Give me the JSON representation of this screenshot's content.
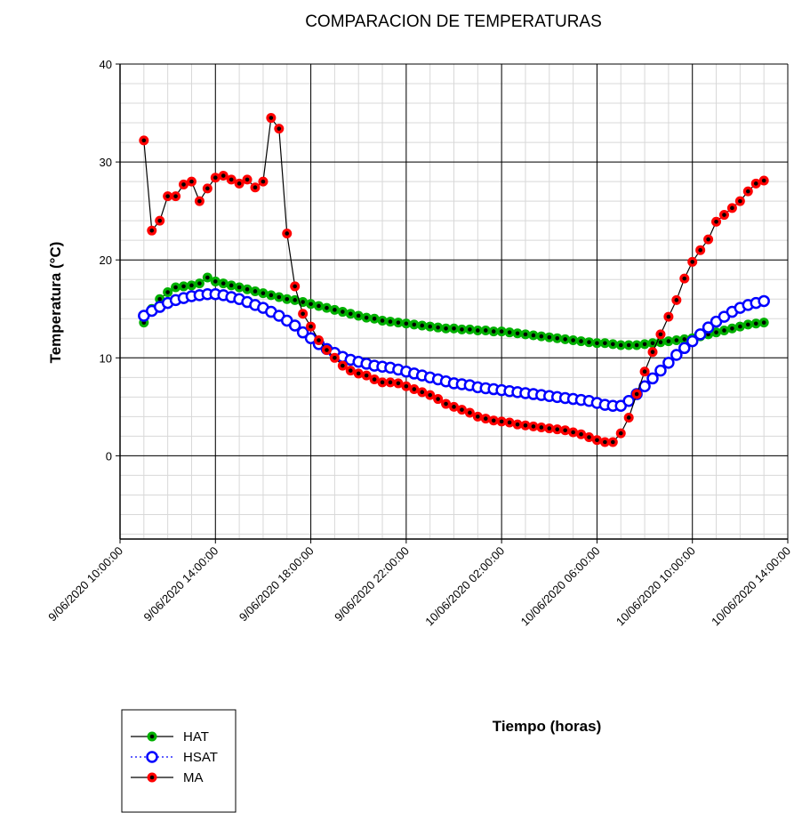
{
  "chart_data": {
    "type": "line",
    "title": "COMPARACION DE TEMPERATURAS",
    "x_label": "Tiempo (horas)",
    "y_label": "Temperatura (°C)",
    "xlim": [
      "9/06/2020 10:00:00",
      "10/06/2020 14:00:00"
    ],
    "xticks": [
      "9/06/2020 10:00:00",
      "9/06/2020 14:00:00",
      "9/06/2020 18:00:00",
      "9/06/2020 22:00:00",
      "10/06/2020 02:00:00",
      "10/06/2020 06:00:00",
      "10/06/2020 10:00:00",
      "10/06/2020 14:00:00"
    ],
    "ylim": [
      -8.5,
      40
    ],
    "yticks": [
      0,
      10,
      20,
      30,
      40
    ],
    "grid": true,
    "legend": "bottom-left",
    "x": [
      "9/06/2020 11:00:00",
      "9/06/2020 11:20:00",
      "9/06/2020 11:40:00",
      "9/06/2020 12:00:00",
      "9/06/2020 12:20:00",
      "9/06/2020 12:40:00",
      "9/06/2020 13:00:00",
      "9/06/2020 13:20:00",
      "9/06/2020 13:40:00",
      "9/06/2020 14:00:00",
      "9/06/2020 14:20:00",
      "9/06/2020 14:40:00",
      "9/06/2020 15:00:00",
      "9/06/2020 15:20:00",
      "9/06/2020 15:40:00",
      "9/06/2020 16:00:00",
      "9/06/2020 16:20:00",
      "9/06/2020 16:40:00",
      "9/06/2020 17:00:00",
      "9/06/2020 17:20:00",
      "9/06/2020 17:40:00",
      "9/06/2020 18:00:00",
      "9/06/2020 18:20:00",
      "9/06/2020 18:40:00",
      "9/06/2020 19:00:00",
      "9/06/2020 19:20:00",
      "9/06/2020 19:40:00",
      "9/06/2020 20:00:00",
      "9/06/2020 20:20:00",
      "9/06/2020 20:40:00",
      "9/06/2020 21:00:00",
      "9/06/2020 21:20:00",
      "9/06/2020 21:40:00",
      "9/06/2020 22:00:00",
      "9/06/2020 22:20:00",
      "9/06/2020 22:40:00",
      "9/06/2020 23:00:00",
      "9/06/2020 23:20:00",
      "9/06/2020 23:40:00",
      "10/06/2020 00:00:00",
      "10/06/2020 00:20:00",
      "10/06/2020 00:40:00",
      "10/06/2020 01:00:00",
      "10/06/2020 01:20:00",
      "10/06/2020 01:40:00",
      "10/06/2020 02:00:00",
      "10/06/2020 02:20:00",
      "10/06/2020 02:40:00",
      "10/06/2020 03:00:00",
      "10/06/2020 03:20:00",
      "10/06/2020 03:40:00",
      "10/06/2020 04:00:00",
      "10/06/2020 04:20:00",
      "10/06/2020 04:40:00",
      "10/06/2020 05:00:00",
      "10/06/2020 05:20:00",
      "10/06/2020 05:40:00",
      "10/06/2020 06:00:00",
      "10/06/2020 06:20:00",
      "10/06/2020 06:40:00",
      "10/06/2020 07:00:00",
      "10/06/2020 07:20:00",
      "10/06/2020 07:40:00",
      "10/06/2020 08:00:00",
      "10/06/2020 08:20:00",
      "10/06/2020 08:40:00",
      "10/06/2020 09:00:00",
      "10/06/2020 09:20:00",
      "10/06/2020 09:40:00",
      "10/06/2020 10:00:00",
      "10/06/2020 10:20:00",
      "10/06/2020 10:40:00",
      "10/06/2020 11:00:00",
      "10/06/2020 11:20:00",
      "10/06/2020 11:40:00",
      "10/06/2020 12:00:00",
      "10/06/2020 12:20:00",
      "10/06/2020 12:40:00",
      "10/06/2020 13:00:00"
    ],
    "series": [
      {
        "name": "HAT",
        "color": "#00b000",
        "line_color": "#000000",
        "line_style": "solid",
        "values": [
          13.6,
          15,
          16,
          16.7,
          17.2,
          17.3,
          17.4,
          17.6,
          18.2,
          17.8,
          17.6,
          17.4,
          17.2,
          17,
          16.8,
          16.6,
          16.4,
          16.2,
          16,
          15.9,
          15.7,
          15.5,
          15.3,
          15.1,
          14.9,
          14.7,
          14.5,
          14.3,
          14.1,
          14,
          13.8,
          13.7,
          13.6,
          13.5,
          13.4,
          13.3,
          13.2,
          13.1,
          13,
          13,
          12.9,
          12.9,
          12.8,
          12.8,
          12.7,
          12.7,
          12.6,
          12.5,
          12.4,
          12.3,
          12.2,
          12.1,
          12,
          11.9,
          11.8,
          11.7,
          11.6,
          11.5,
          11.5,
          11.4,
          11.3,
          11.3,
          11.3,
          11.4,
          11.5,
          11.6,
          11.7,
          11.8,
          11.9,
          12,
          12.2,
          12.4,
          12.6,
          12.8,
          13,
          13.2,
          13.4,
          13.5,
          13.6
        ]
      },
      {
        "name": "HSAT",
        "color": "#0000ff",
        "line_color": "#0000ff",
        "line_style": "dotted",
        "values": [
          14.3,
          14.8,
          15.2,
          15.6,
          15.9,
          16.1,
          16.3,
          16.4,
          16.5,
          16.5,
          16.4,
          16.2,
          16,
          15.7,
          15.4,
          15.1,
          14.7,
          14.3,
          13.8,
          13.3,
          12.6,
          12,
          11.4,
          10.9,
          10.5,
          10.1,
          9.8,
          9.6,
          9.4,
          9.2,
          9.1,
          9,
          8.8,
          8.6,
          8.4,
          8.2,
          8,
          7.8,
          7.6,
          7.4,
          7.3,
          7.2,
          7,
          6.9,
          6.8,
          6.7,
          6.6,
          6.5,
          6.4,
          6.3,
          6.2,
          6.1,
          6,
          5.9,
          5.8,
          5.7,
          5.6,
          5.4,
          5.2,
          5.1,
          5.1,
          5.6,
          6.3,
          7.1,
          7.9,
          8.7,
          9.5,
          10.3,
          11,
          11.7,
          12.4,
          13.1,
          13.7,
          14.2,
          14.7,
          15.1,
          15.4,
          15.6,
          15.8
        ]
      },
      {
        "name": "MA",
        "color": "#ff0000",
        "line_color": "#000000",
        "line_style": "solid",
        "values": [
          32.2,
          23,
          24,
          26.5,
          26.5,
          27.7,
          28,
          26,
          27.3,
          28.4,
          28.6,
          28.2,
          27.8,
          28.2,
          27.4,
          28,
          34.5,
          33.4,
          22.7,
          17.3,
          14.5,
          13.2,
          11.8,
          10.8,
          10,
          9.2,
          8.7,
          8.4,
          8.2,
          7.8,
          7.5,
          7.5,
          7.4,
          7.1,
          6.8,
          6.5,
          6.2,
          5.8,
          5.3,
          5,
          4.7,
          4.4,
          4,
          3.8,
          3.6,
          3.5,
          3.4,
          3.2,
          3.1,
          3,
          2.9,
          2.8,
          2.7,
          2.6,
          2.4,
          2.2,
          1.9,
          1.6,
          1.4,
          1.4,
          2.3,
          3.9,
          6.3,
          8.6,
          10.6,
          12.4,
          14.2,
          15.9,
          18.1,
          19.8,
          21,
          22.1,
          23.9,
          24.6,
          25.3,
          26,
          27,
          27.8,
          28.1
        ]
      }
    ]
  }
}
